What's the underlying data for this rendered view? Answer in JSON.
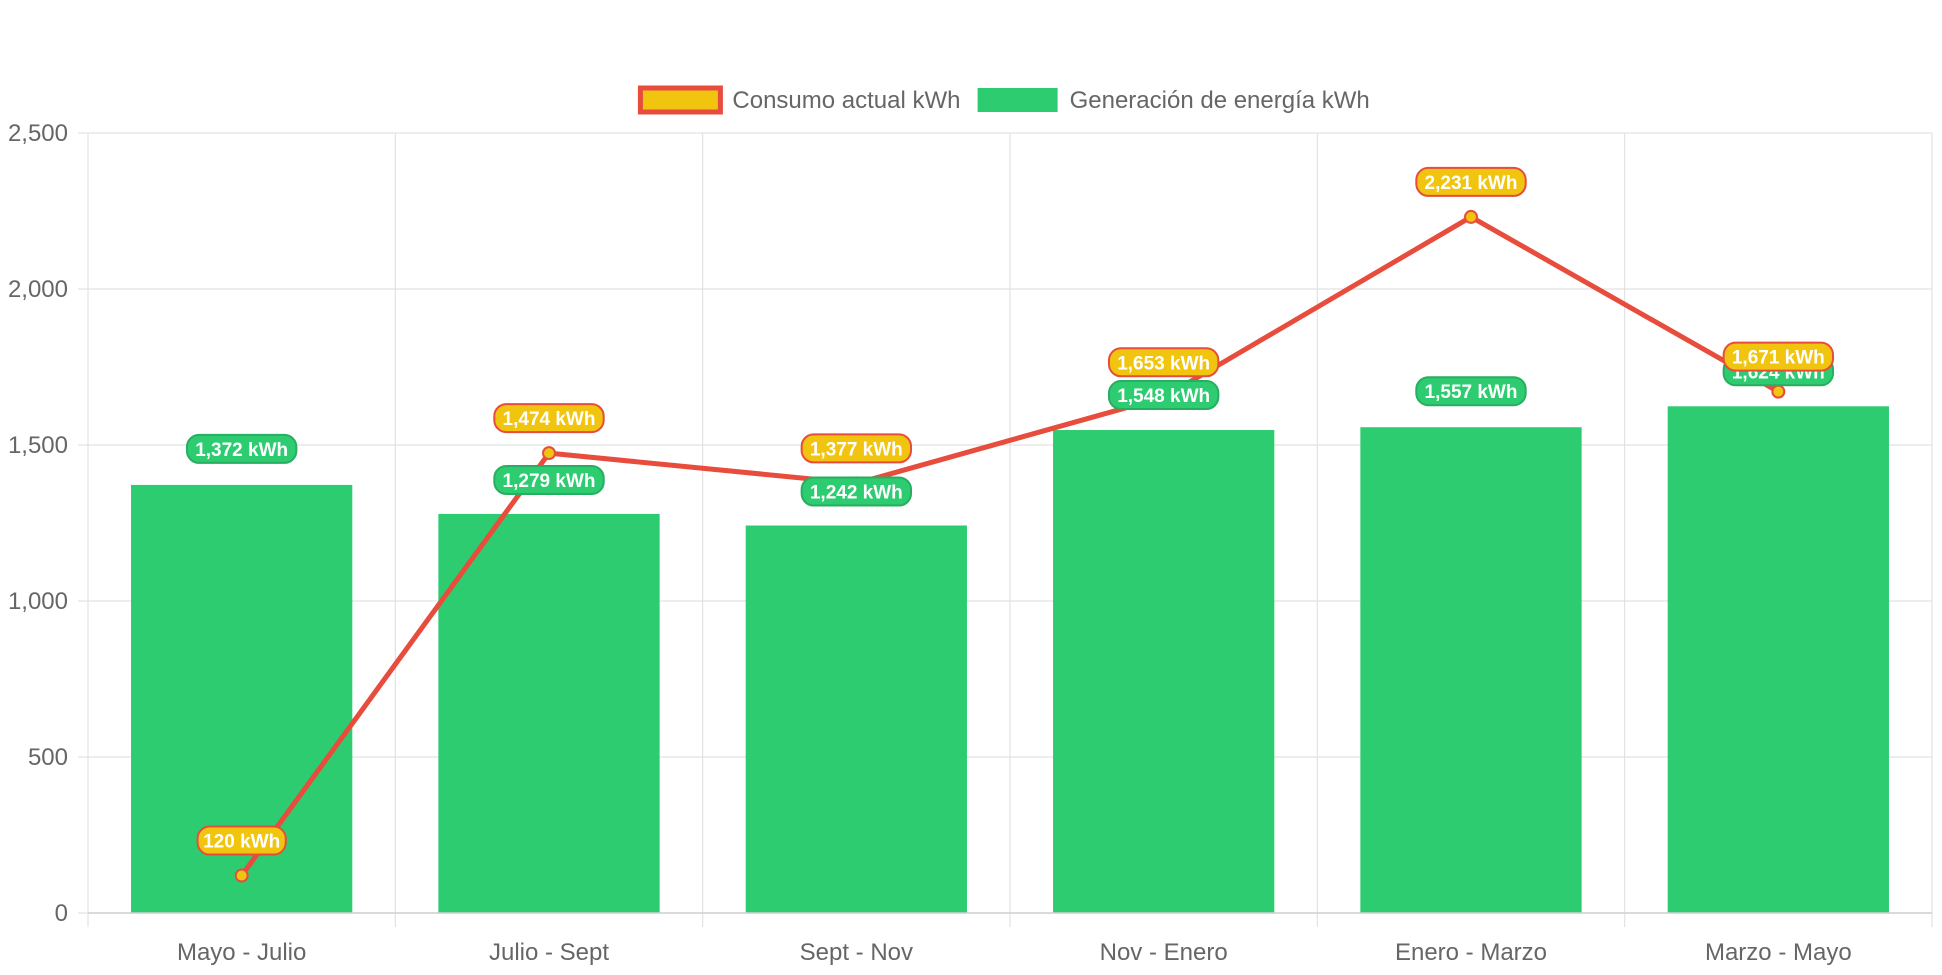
{
  "chart_data": {
    "type": "bar",
    "title": "",
    "xlabel": "",
    "ylabel": "",
    "categories": [
      "Mayo - Julio",
      "Julio - Sept",
      "Sept - Nov",
      "Nov - Enero",
      "Enero - Marzo",
      "Marzo - Mayo"
    ],
    "ylim": [
      0,
      2500
    ],
    "yticks": [
      0,
      500,
      1000,
      1500,
      2000,
      2500
    ],
    "ytick_labels": [
      "0",
      "500",
      "1,000",
      "1,500",
      "2,000",
      "2,500"
    ],
    "grid": true,
    "legend_position": "top",
    "series": [
      {
        "name": "Consumo actual kWh",
        "type": "line",
        "values": [
          120,
          1474,
          1377,
          1653,
          2231,
          1671
        ],
        "labels": [
          "120 kWh",
          "1,474 kWh",
          "1,377 kWh",
          "1,653 kWh",
          "2,231 kWh",
          "1,671 kWh"
        ],
        "color": "#e74c3c",
        "fill": "#f1c40f"
      },
      {
        "name": "Generación de energía kWh",
        "type": "bar",
        "values": [
          1372,
          1279,
          1242,
          1548,
          1557,
          1624
        ],
        "labels": [
          "1,372 kWh",
          "1,279 kWh",
          "1,242 kWh",
          "1,548 kWh",
          "1,557 kWh",
          "1,624 kWh"
        ],
        "color": "#2ecc71",
        "border": "#27ae60"
      }
    ]
  }
}
